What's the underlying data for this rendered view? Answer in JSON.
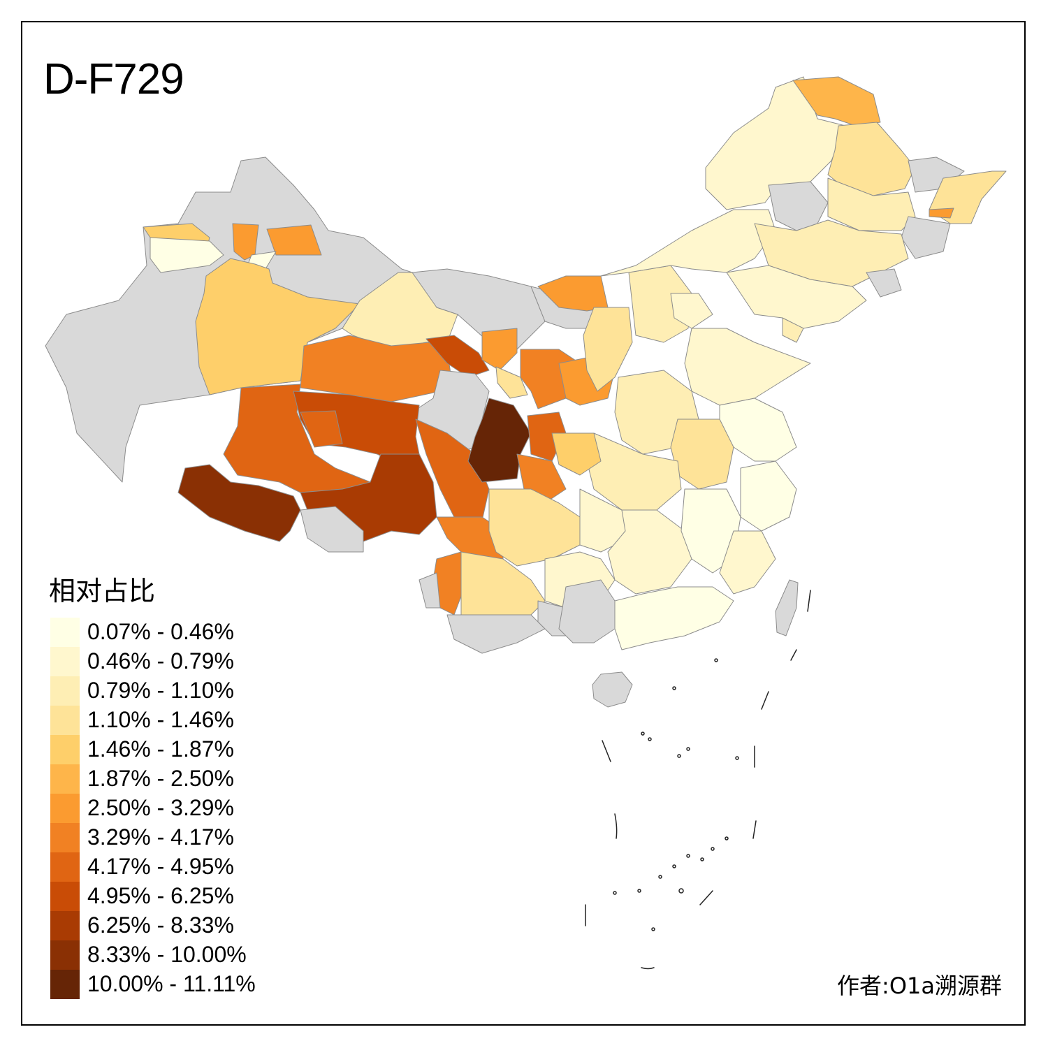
{
  "title": "D-F729",
  "legend": {
    "title": "相对占比",
    "items": [
      {
        "label": "0.07% - 0.46%",
        "color": "#FFFFE5"
      },
      {
        "label": "0.46% - 0.79%",
        "color": "#FFF7CE"
      },
      {
        "label": "0.79% - 1.10%",
        "color": "#FEEEB4"
      },
      {
        "label": "1.10% - 1.46%",
        "color": "#FEE398"
      },
      {
        "label": "1.46% - 1.87%",
        "color": "#FECF6A"
      },
      {
        "label": "1.87% - 2.50%",
        "color": "#FEB54A"
      },
      {
        "label": "2.50% - 3.29%",
        "color": "#FB9B30"
      },
      {
        "label": "3.29% - 4.17%",
        "color": "#F18123"
      },
      {
        "label": "4.17% - 4.95%",
        "color": "#E06513"
      },
      {
        "label": "4.95% - 6.25%",
        "color": "#C94C06"
      },
      {
        "label": "6.25% - 8.33%",
        "color": "#A93B03"
      },
      {
        "label": "8.33% - 10.00%",
        "color": "#8A3004"
      },
      {
        "label": "10.00% - 11.11%",
        "color": "#662506"
      }
    ]
  },
  "no_data_color": "#D9D9D9",
  "credit": "作者:O1a溯源群"
}
